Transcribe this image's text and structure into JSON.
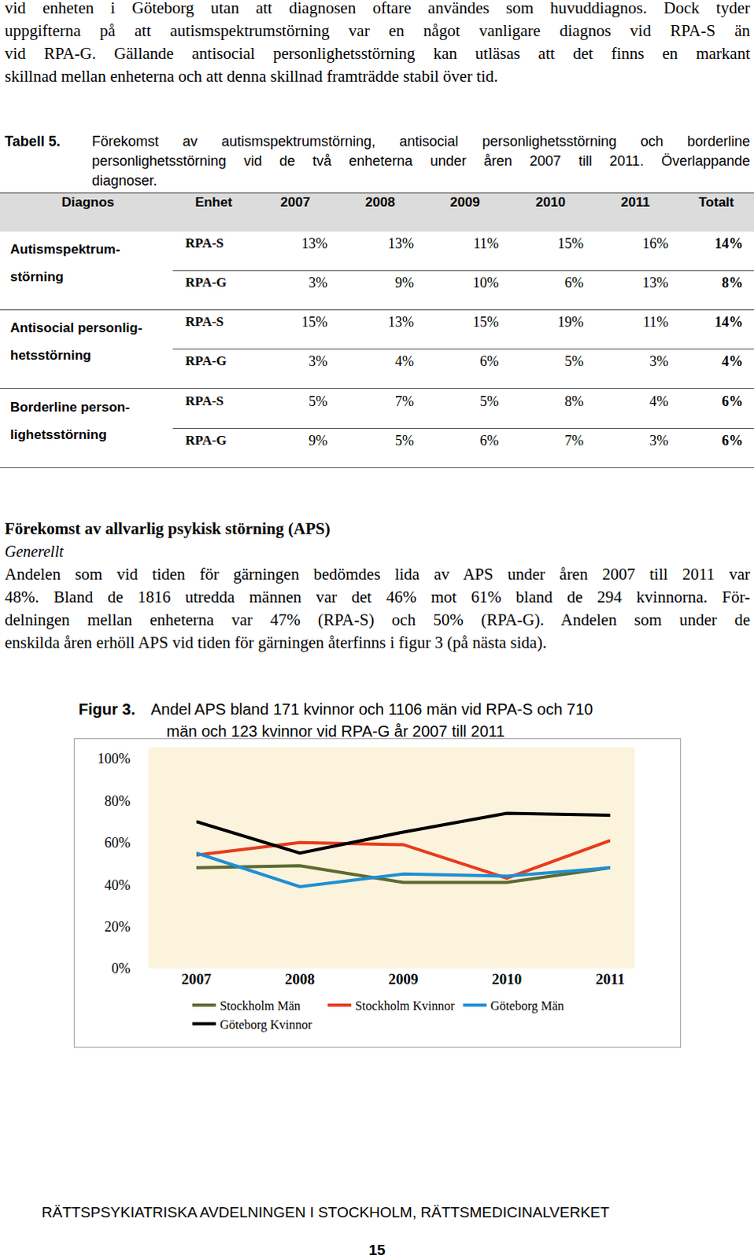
{
  "intro_paragraph": {
    "lines": [
      "vid enheten i Göteborg utan att diagnosen oftare användes som huvuddiagnos. Dock tyder",
      "uppgifterna på att autismspektrumstörning var en något vanligare diagnos vid RPA-S än",
      "vid RPA-G. Gällande antisocial personlighetsstörning kan utläsas att det finns en markant",
      "skillnad mellan enheterna och att denna skillnad framträdde stabil över tid."
    ]
  },
  "table": {
    "caption_label": "Tabell 5.",
    "caption_lines": [
      "Förekomst av autismspektrumstörning, antisocial personlighetsstörning och borderline",
      "personlighetsstörning vid de två enheterna under åren 2007 till 2011. Överlappande",
      "diagnoser."
    ],
    "header": [
      "Diagnos",
      "Enhet",
      "2007",
      "2008",
      "2009",
      "2010",
      "2011",
      "Totalt"
    ],
    "groups": [
      {
        "diagnosis_lines": [
          "Autismspektrum-",
          "störning"
        ],
        "rows": [
          [
            "RPA-S",
            "13%",
            "13%",
            "11%",
            "15%",
            "16%",
            "14%"
          ],
          [
            "RPA-G",
            "3%",
            "9%",
            "10%",
            "6%",
            "13%",
            "8%"
          ]
        ]
      },
      {
        "diagnosis_lines": [
          "Antisocial personlig-",
          "hetsstörning"
        ],
        "rows": [
          [
            "RPA-S",
            "15%",
            "13%",
            "15%",
            "19%",
            "11%",
            "14%"
          ],
          [
            "RPA-G",
            "3%",
            "4%",
            "6%",
            "5%",
            "3%",
            "4%"
          ]
        ]
      },
      {
        "diagnosis_lines": [
          "Borderline person-",
          "lighetsstörning"
        ],
        "rows": [
          [
            "RPA-S",
            "5%",
            "7%",
            "5%",
            "8%",
            "4%",
            "6%"
          ],
          [
            "RPA-G",
            "9%",
            "5%",
            "6%",
            "7%",
            "3%",
            "6%"
          ]
        ]
      }
    ]
  },
  "section": {
    "heading": "Förekomst av allvarlig psykisk störning (APS)",
    "subheading": "Generellt",
    "lines": [
      "Andelen som vid tiden för gärningen bedömdes lida av APS under åren 2007 till 2011 var",
      "48%. Bland de 1816 utredda männen var det 46% mot 61% bland de 294 kvinnorna. För-",
      "delningen mellan enheterna var 47% (RPA-S) och 50% (RPA-G). Andelen som under de",
      "enskilda åren erhöll APS vid tiden för gärningen återfinns i figur 3 (på nästa sida)."
    ]
  },
  "figure": {
    "label": "Figur 3.",
    "caption_lines": [
      "Andel APS bland 171 kvinnor och 1106 män vid RPA-S och 710",
      "män och 123 kvinnor vid RPA-G år 2007 till 2011"
    ]
  },
  "chart_data": {
    "type": "line",
    "categories": [
      "2007",
      "2008",
      "2009",
      "2010",
      "2011"
    ],
    "series": [
      {
        "name": "Stockholm Män",
        "color": "#5b6b32",
        "values": [
          48,
          49,
          41,
          41,
          48
        ]
      },
      {
        "name": "Stockholm Kvinnor",
        "color": "#e63b1f",
        "values": [
          54,
          60,
          59,
          43,
          61
        ]
      },
      {
        "name": "Göteborg Män",
        "color": "#1e8fd5",
        "values": [
          55,
          39,
          45,
          44,
          48
        ]
      },
      {
        "name": "Göteborg Kvinnor",
        "color": "#000000",
        "values": [
          70,
          55,
          65,
          74,
          73
        ]
      }
    ],
    "ylim": [
      0,
      100
    ],
    "yticks": [
      {
        "value": 0,
        "label": "0%"
      },
      {
        "value": 20,
        "label": "20%"
      },
      {
        "value": 40,
        "label": "40%"
      },
      {
        "value": 60,
        "label": "60%"
      },
      {
        "value": 80,
        "label": "80%"
      },
      {
        "value": 100,
        "label": "100%"
      }
    ],
    "grid": false,
    "legend": "bottom"
  },
  "footer": "RÄTTSPSYKIATRISKA AVDELNINGEN I STOCKHOLM, RÄTTSMEDICINALVERKET",
  "page_number": "15"
}
